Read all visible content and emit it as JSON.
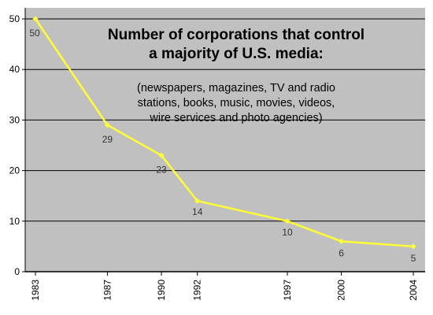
{
  "chart_data": {
    "type": "line",
    "title_lines": [
      "Number of corporations that control",
      "a majority of U.S. media:"
    ],
    "subtitle_lines": [
      "(newspapers, magazines, TV and radio",
      "stations, books, music, movies, videos,",
      "wire services and photo agencies)"
    ],
    "x": [
      "1983",
      "1987",
      "1990",
      "1992",
      "1997",
      "2000",
      "2004"
    ],
    "values": [
      50,
      29,
      23,
      14,
      10,
      6,
      5
    ],
    "data_labels": [
      "50",
      "29",
      "23",
      "14",
      "10",
      "6",
      "5"
    ],
    "y_ticks": [
      "0",
      "10",
      "20",
      "30",
      "40",
      "50"
    ],
    "ylim": [
      0,
      50
    ],
    "grid": true,
    "legend": false,
    "colors": {
      "plot_background": "#c0c0c0",
      "line": "#ffff33",
      "grid": "#000000",
      "text": "#000000"
    }
  }
}
